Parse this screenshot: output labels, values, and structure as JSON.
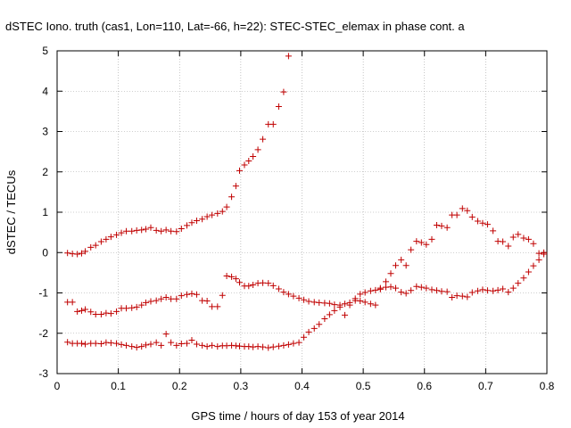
{
  "chart_data": {
    "type": "scatter",
    "title": "dSTEC Iono. truth (cas1, Lon=110, Lat=-66, h=22): STEC-STEC_elemax in phase cont. a",
    "xlabel": "GPS time / hours of day 153 of year 2014",
    "ylabel": "dSTEC  / TECUs",
    "xlim": [
      0,
      0.8
    ],
    "ylim": [
      -3,
      5
    ],
    "xticks": [
      "0",
      "0.1",
      "0.2",
      "0.3",
      "0.4",
      "0.5",
      "0.6",
      "0.7",
      "0.8"
    ],
    "yticks": [
      "-3",
      "-2",
      "-1",
      "0",
      "1",
      "2",
      "3",
      "4",
      "5"
    ],
    "grid": true,
    "marker_color": "#cc0000",
    "series": [
      {
        "points": [
          [
            0.017,
            -0.01
          ],
          [
            0.025,
            -0.03
          ],
          [
            0.033,
            -0.04
          ],
          [
            0.04,
            -0.02
          ],
          [
            0.046,
            0.03
          ],
          [
            0.055,
            0.13
          ],
          [
            0.063,
            0.18
          ],
          [
            0.072,
            0.27
          ],
          [
            0.08,
            0.33
          ],
          [
            0.088,
            0.39
          ],
          [
            0.097,
            0.44
          ],
          [
            0.105,
            0.49
          ],
          [
            0.113,
            0.53
          ],
          [
            0.122,
            0.53
          ],
          [
            0.13,
            0.55
          ],
          [
            0.138,
            0.56
          ],
          [
            0.145,
            0.58
          ],
          [
            0.153,
            0.62
          ],
          [
            0.162,
            0.55
          ],
          [
            0.17,
            0.53
          ],
          [
            0.178,
            0.56
          ],
          [
            0.186,
            0.53
          ],
          [
            0.195,
            0.52
          ],
          [
            0.203,
            0.59
          ],
          [
            0.212,
            0.67
          ],
          [
            0.22,
            0.74
          ],
          [
            0.228,
            0.79
          ],
          [
            0.237,
            0.83
          ],
          [
            0.245,
            0.89
          ],
          [
            0.253,
            0.93
          ],
          [
            0.262,
            0.97
          ],
          [
            0.27,
            1.02
          ],
          [
            0.277,
            1.13
          ],
          [
            0.285,
            1.38
          ],
          [
            0.292,
            1.65
          ],
          [
            0.298,
            2.03
          ],
          [
            0.306,
            2.17
          ],
          [
            0.313,
            2.27
          ],
          [
            0.32,
            2.38
          ],
          [
            0.328,
            2.55
          ],
          [
            0.336,
            2.81
          ],
          [
            0.345,
            3.18
          ],
          [
            0.353,
            3.18
          ],
          [
            0.362,
            3.62
          ],
          [
            0.37,
            3.98
          ],
          [
            0.378,
            4.87
          ]
        ]
      },
      {
        "points": [
          [
            0.017,
            -1.23
          ],
          [
            0.025,
            -1.23
          ],
          [
            0.033,
            -1.46
          ],
          [
            0.04,
            -1.44
          ],
          [
            0.046,
            -1.41
          ],
          [
            0.055,
            -1.47
          ],
          [
            0.063,
            -1.53
          ],
          [
            0.072,
            -1.53
          ],
          [
            0.08,
            -1.5
          ],
          [
            0.088,
            -1.51
          ],
          [
            0.097,
            -1.46
          ],
          [
            0.105,
            -1.38
          ],
          [
            0.113,
            -1.38
          ],
          [
            0.122,
            -1.37
          ],
          [
            0.13,
            -1.35
          ],
          [
            0.138,
            -1.3
          ],
          [
            0.145,
            -1.24
          ],
          [
            0.153,
            -1.21
          ],
          [
            0.162,
            -1.19
          ],
          [
            0.17,
            -1.15
          ],
          [
            0.178,
            -1.11
          ],
          [
            0.186,
            -1.15
          ],
          [
            0.195,
            -1.15
          ],
          [
            0.203,
            -1.07
          ],
          [
            0.212,
            -1.04
          ],
          [
            0.22,
            -1.02
          ],
          [
            0.228,
            -1.04
          ],
          [
            0.237,
            -1.19
          ],
          [
            0.245,
            -1.2
          ],
          [
            0.253,
            -1.34
          ],
          [
            0.262,
            -1.34
          ],
          [
            0.27,
            -1.06
          ],
          [
            0.277,
            -0.58
          ],
          [
            0.285,
            -0.6
          ],
          [
            0.292,
            -0.65
          ],
          [
            0.298,
            -0.74
          ],
          [
            0.306,
            -0.83
          ],
          [
            0.313,
            -0.83
          ],
          [
            0.32,
            -0.8
          ],
          [
            0.328,
            -0.76
          ],
          [
            0.336,
            -0.75
          ],
          [
            0.345,
            -0.76
          ],
          [
            0.353,
            -0.82
          ],
          [
            0.362,
            -0.9
          ],
          [
            0.37,
            -0.98
          ],
          [
            0.378,
            -1.03
          ],
          [
            0.386,
            -1.08
          ],
          [
            0.395,
            -1.13
          ],
          [
            0.403,
            -1.17
          ],
          [
            0.411,
            -1.21
          ],
          [
            0.42,
            -1.23
          ],
          [
            0.428,
            -1.24
          ],
          [
            0.437,
            -1.25
          ],
          [
            0.445,
            -1.26
          ],
          [
            0.453,
            -1.29
          ],
          [
            0.462,
            -1.3
          ],
          [
            0.47,
            -1.27
          ],
          [
            0.478,
            -1.24
          ],
          [
            0.487,
            -1.19
          ],
          [
            0.495,
            -1.2
          ],
          [
            0.503,
            -1.23
          ],
          [
            0.512,
            -1.27
          ],
          [
            0.52,
            -1.3
          ]
        ]
      },
      {
        "points": [
          [
            0.017,
            -2.22
          ],
          [
            0.025,
            -2.25
          ],
          [
            0.033,
            -2.25
          ],
          [
            0.04,
            -2.25
          ],
          [
            0.046,
            -2.27
          ],
          [
            0.055,
            -2.25
          ],
          [
            0.063,
            -2.25
          ],
          [
            0.072,
            -2.26
          ],
          [
            0.08,
            -2.23
          ],
          [
            0.088,
            -2.24
          ],
          [
            0.097,
            -2.25
          ],
          [
            0.105,
            -2.28
          ],
          [
            0.113,
            -2.3
          ],
          [
            0.122,
            -2.33
          ],
          [
            0.13,
            -2.35
          ],
          [
            0.138,
            -2.33
          ],
          [
            0.145,
            -2.29
          ],
          [
            0.153,
            -2.27
          ],
          [
            0.162,
            -2.23
          ],
          [
            0.17,
            -2.3
          ],
          [
            0.178,
            -2.02
          ],
          [
            0.186,
            -2.23
          ],
          [
            0.195,
            -2.3
          ],
          [
            0.203,
            -2.26
          ],
          [
            0.212,
            -2.25
          ],
          [
            0.22,
            -2.17
          ],
          [
            0.228,
            -2.27
          ],
          [
            0.237,
            -2.3
          ],
          [
            0.245,
            -2.33
          ],
          [
            0.253,
            -2.3
          ],
          [
            0.262,
            -2.33
          ],
          [
            0.27,
            -2.31
          ],
          [
            0.277,
            -2.31
          ],
          [
            0.285,
            -2.3
          ],
          [
            0.292,
            -2.31
          ],
          [
            0.298,
            -2.32
          ],
          [
            0.306,
            -2.33
          ],
          [
            0.313,
            -2.33
          ],
          [
            0.32,
            -2.34
          ],
          [
            0.328,
            -2.33
          ],
          [
            0.336,
            -2.34
          ],
          [
            0.345,
            -2.36
          ],
          [
            0.353,
            -2.34
          ],
          [
            0.362,
            -2.32
          ],
          [
            0.37,
            -2.3
          ],
          [
            0.378,
            -2.28
          ],
          [
            0.386,
            -2.25
          ],
          [
            0.395,
            -2.23
          ],
          [
            0.403,
            -2.1
          ],
          [
            0.411,
            -1.97
          ],
          [
            0.42,
            -1.88
          ],
          [
            0.428,
            -1.78
          ],
          [
            0.437,
            -1.64
          ],
          [
            0.445,
            -1.54
          ],
          [
            0.453,
            -1.44
          ],
          [
            0.462,
            -1.35
          ],
          [
            0.47,
            -1.55
          ],
          [
            0.478,
            -1.3
          ],
          [
            0.487,
            -1.14
          ],
          [
            0.495,
            -1.03
          ],
          [
            0.503,
            -0.99
          ],
          [
            0.512,
            -0.95
          ],
          [
            0.52,
            -0.93
          ],
          [
            0.528,
            -0.91
          ],
          [
            0.537,
            -0.72
          ],
          [
            0.545,
            -0.52
          ],
          [
            0.553,
            -0.32
          ],
          [
            0.562,
            -0.18
          ],
          [
            0.57,
            -0.32
          ],
          [
            0.578,
            0.07
          ],
          [
            0.587,
            0.28
          ],
          [
            0.595,
            0.25
          ],
          [
            0.603,
            0.2
          ],
          [
            0.612,
            0.33
          ],
          [
            0.62,
            0.68
          ],
          [
            0.628,
            0.66
          ],
          [
            0.637,
            0.62
          ],
          [
            0.645,
            0.93
          ],
          [
            0.653,
            0.93
          ],
          [
            0.662,
            1.09
          ],
          [
            0.67,
            1.04
          ],
          [
            0.678,
            0.88
          ],
          [
            0.687,
            0.78
          ],
          [
            0.695,
            0.73
          ],
          [
            0.703,
            0.7
          ],
          [
            0.712,
            0.54
          ],
          [
            0.72,
            0.28
          ],
          [
            0.728,
            0.27
          ],
          [
            0.737,
            0.16
          ],
          [
            0.745,
            0.38
          ],
          [
            0.753,
            0.45
          ],
          [
            0.762,
            0.36
          ],
          [
            0.77,
            0.33
          ],
          [
            0.778,
            0.22
          ],
          [
            0.787,
            -0.02
          ],
          [
            0.795,
            0.0
          ]
        ]
      },
      {
        "points": [
          [
            0.528,
            -0.88
          ],
          [
            0.537,
            -0.86
          ],
          [
            0.545,
            -0.85
          ],
          [
            0.553,
            -0.88
          ],
          [
            0.562,
            -0.98
          ],
          [
            0.57,
            -1.01
          ],
          [
            0.578,
            -0.94
          ],
          [
            0.587,
            -0.84
          ],
          [
            0.595,
            -0.86
          ],
          [
            0.603,
            -0.88
          ],
          [
            0.612,
            -0.92
          ],
          [
            0.62,
            -0.94
          ],
          [
            0.628,
            -0.96
          ],
          [
            0.637,
            -0.97
          ],
          [
            0.645,
            -1.11
          ],
          [
            0.653,
            -1.07
          ],
          [
            0.662,
            -1.08
          ],
          [
            0.67,
            -1.1
          ],
          [
            0.678,
            -0.99
          ],
          [
            0.687,
            -0.95
          ],
          [
            0.695,
            -0.92
          ],
          [
            0.703,
            -0.94
          ],
          [
            0.712,
            -0.95
          ],
          [
            0.72,
            -0.93
          ],
          [
            0.728,
            -0.9
          ],
          [
            0.737,
            -0.98
          ],
          [
            0.745,
            -0.88
          ],
          [
            0.753,
            -0.76
          ],
          [
            0.762,
            -0.63
          ],
          [
            0.77,
            -0.48
          ],
          [
            0.778,
            -0.33
          ],
          [
            0.787,
            -0.18
          ],
          [
            0.795,
            -0.04
          ]
        ]
      }
    ]
  }
}
